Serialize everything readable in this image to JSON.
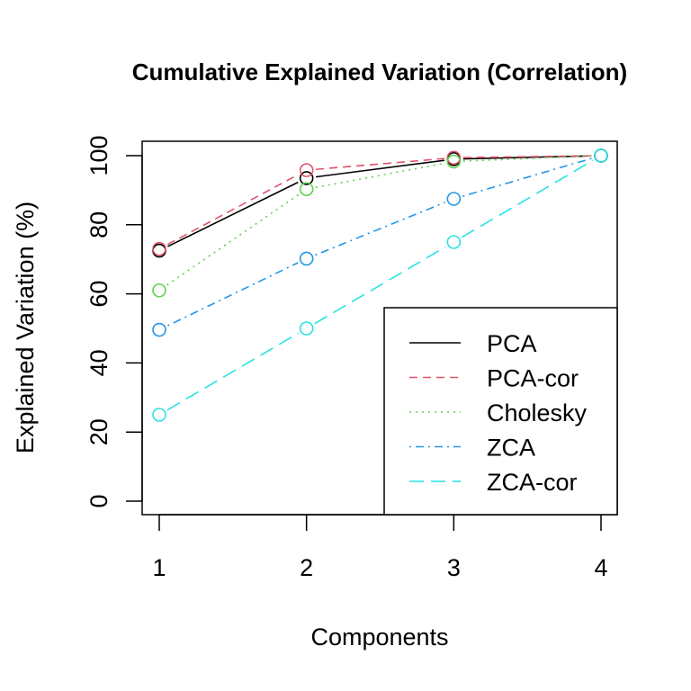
{
  "chart_data": {
    "type": "line",
    "title": "Cumulative Explained Variation (Correlation)",
    "xlabel": "Components",
    "ylabel": "Explained Variation (%)",
    "x": [
      1,
      2,
      3,
      4
    ],
    "xlim": [
      1,
      4
    ],
    "ylim": [
      0,
      100
    ],
    "x_ticks": [
      "1",
      "2",
      "3",
      "4"
    ],
    "y_ticks": [
      "0",
      "20",
      "40",
      "60",
      "80",
      "100"
    ],
    "grid": false,
    "legend_position": "bottom-right",
    "series": [
      {
        "name": "PCA",
        "values": [
          72.5,
          93.5,
          99.0,
          100
        ],
        "color": "#000000",
        "line_style": "solid"
      },
      {
        "name": "PCA-cor",
        "values": [
          73.0,
          95.8,
          99.4,
          100
        ],
        "color": "#DF536B",
        "line_style": "dashed"
      },
      {
        "name": "Cholesky",
        "values": [
          61.0,
          90.3,
          98.3,
          100
        ],
        "color": "#61D04F",
        "line_style": "dotted"
      },
      {
        "name": "ZCA",
        "values": [
          49.6,
          70.2,
          87.5,
          100
        ],
        "color": "#2297E6",
        "line_style": "dotdash"
      },
      {
        "name": "ZCA-cor",
        "values": [
          25.0,
          50.0,
          75.0,
          100
        ],
        "color": "#28E2E5",
        "line_style": "longdash"
      }
    ]
  }
}
